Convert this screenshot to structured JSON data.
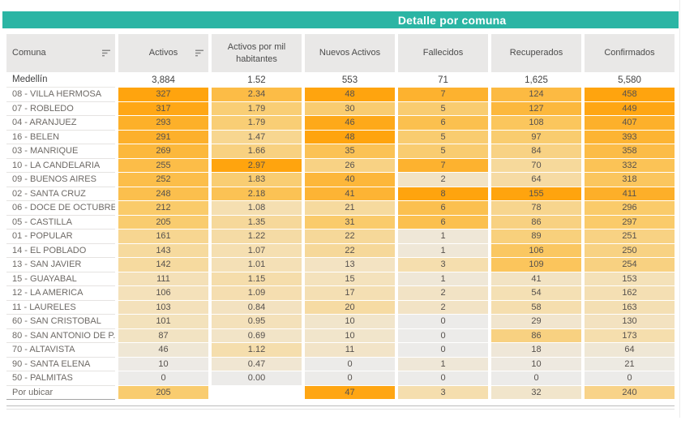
{
  "colors": {
    "accent_teal": "#2BB5A4",
    "title_text": "#FFFFFF",
    "header_bg": "#E9E8E7",
    "heat_low": "#ECEBE9",
    "heat_high": "#FFA40E"
  },
  "icons": {
    "sort": "sort-descending-icon"
  },
  "chart_data": {
    "type": "table",
    "subtype": "highlight-heatmap-table",
    "title": "Detalle por comuna",
    "legend_position": "none",
    "grid": "row-separators",
    "heatmap": {
      "scale": "per-column, 0 to column max",
      "stops": [
        [
          0,
          "#ECEBE9"
        ],
        [
          0.33,
          "#F4E1B9"
        ],
        [
          0.66,
          "#FACA67"
        ],
        [
          1,
          "#FFA40E"
        ]
      ]
    },
    "columns": [
      {
        "label": "Comuna",
        "sortable": true
      },
      {
        "label": "Activos",
        "sortable": true
      },
      {
        "label": "Activos por mil habitantes",
        "sortable": false
      },
      {
        "label": "Nuevos Activos",
        "sortable": false
      },
      {
        "label": "Fallecidos",
        "sortable": false
      },
      {
        "label": "Recuperados",
        "sortable": false
      },
      {
        "label": "Confirmados",
        "sortable": false
      }
    ],
    "total_row": {
      "comuna": "Medellín",
      "values": [
        "3,884",
        "1.52",
        "553",
        "71",
        "1,625",
        "5,580"
      ]
    },
    "rows": [
      {
        "comuna": "08 - VILLA HERMOSA",
        "values": [
          327,
          "2.34",
          48,
          7,
          124,
          458
        ]
      },
      {
        "comuna": "07 - ROBLEDO",
        "values": [
          317,
          "1.79",
          30,
          5,
          127,
          449
        ]
      },
      {
        "comuna": "04 - ARANJUEZ",
        "values": [
          293,
          "1.79",
          46,
          6,
          108,
          407
        ]
      },
      {
        "comuna": "16 - BELEN",
        "values": [
          291,
          "1.47",
          48,
          5,
          97,
          393
        ]
      },
      {
        "comuna": "03 - MANRIQUE",
        "values": [
          269,
          "1.66",
          35,
          5,
          84,
          358
        ]
      },
      {
        "comuna": "10 - LA CANDELARIA",
        "values": [
          255,
          "2.97",
          26,
          7,
          70,
          332
        ]
      },
      {
        "comuna": "09 - BUENOS AIRES",
        "values": [
          252,
          "1.83",
          40,
          2,
          64,
          318
        ]
      },
      {
        "comuna": "02 - SANTA CRUZ",
        "values": [
          248,
          "2.18",
          41,
          8,
          155,
          411
        ]
      },
      {
        "comuna": "06 - DOCE DE OCTUBRE",
        "values": [
          212,
          "1.08",
          21,
          6,
          78,
          296
        ]
      },
      {
        "comuna": "05 - CASTILLA",
        "values": [
          205,
          "1.35",
          31,
          6,
          86,
          297
        ]
      },
      {
        "comuna": "01 - POPULAR",
        "values": [
          161,
          "1.22",
          22,
          1,
          89,
          251
        ]
      },
      {
        "comuna": "14 - EL POBLADO",
        "values": [
          143,
          "1.07",
          22,
          1,
          106,
          250
        ]
      },
      {
        "comuna": "13 - SAN JAVIER",
        "values": [
          142,
          "1.01",
          13,
          3,
          109,
          254
        ]
      },
      {
        "comuna": "15 - GUAYABAL",
        "values": [
          111,
          "1.15",
          15,
          1,
          41,
          153
        ]
      },
      {
        "comuna": "12 - LA AMERICA",
        "values": [
          106,
          "1.09",
          17,
          2,
          54,
          162
        ]
      },
      {
        "comuna": "11 - LAURELES",
        "values": [
          103,
          "0.84",
          20,
          2,
          58,
          163
        ]
      },
      {
        "comuna": "60 - SAN CRISTOBAL",
        "values": [
          101,
          "0.95",
          10,
          0,
          29,
          130
        ]
      },
      {
        "comuna": "80 - SAN ANTONIO DE P..",
        "values": [
          87,
          "0.69",
          10,
          0,
          86,
          173
        ]
      },
      {
        "comuna": "70 - ALTAVISTA",
        "values": [
          46,
          "1.12",
          11,
          0,
          18,
          64
        ]
      },
      {
        "comuna": "90 - SANTA ELENA",
        "values": [
          10,
          "0.47",
          0,
          1,
          10,
          21
        ]
      },
      {
        "comuna": "50 - PALMITAS",
        "values": [
          0,
          "0.00",
          0,
          0,
          0,
          0
        ]
      },
      {
        "comuna": "Por ubicar",
        "values": [
          205,
          null,
          47,
          3,
          32,
          240
        ]
      }
    ]
  }
}
